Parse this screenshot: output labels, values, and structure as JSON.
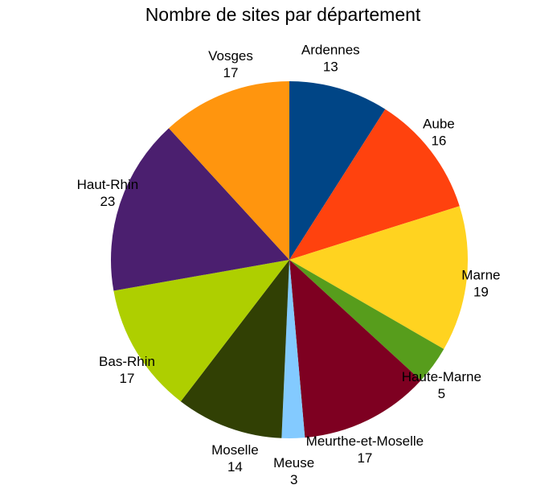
{
  "chart_data": {
    "type": "pie",
    "title": "Nombre de sites par département",
    "start_angle_deg": 0,
    "direction": "clockwise",
    "slices": [
      {
        "label": "Ardennes",
        "value": 13,
        "color": "#004586"
      },
      {
        "label": "Aube",
        "value": 16,
        "color": "#ff420e"
      },
      {
        "label": "Marne",
        "value": 19,
        "color": "#ffd320"
      },
      {
        "label": "Haute-Marne",
        "value": 5,
        "color": "#579d1c"
      },
      {
        "label": "Meurthe-et-Moselle",
        "value": 17,
        "color": "#7e0021"
      },
      {
        "label": "Meuse",
        "value": 3,
        "color": "#83caff"
      },
      {
        "label": "Moselle",
        "value": 14,
        "color": "#314004"
      },
      {
        "label": "Bas-Rhin",
        "value": 17,
        "color": "#aecf00"
      },
      {
        "label": "Haut-Rhin",
        "value": 23,
        "color": "#4b1f6f"
      },
      {
        "label": "Vosges",
        "value": 17,
        "color": "#ff950e"
      }
    ],
    "legend": "none",
    "labels_show": "category-and-value"
  }
}
